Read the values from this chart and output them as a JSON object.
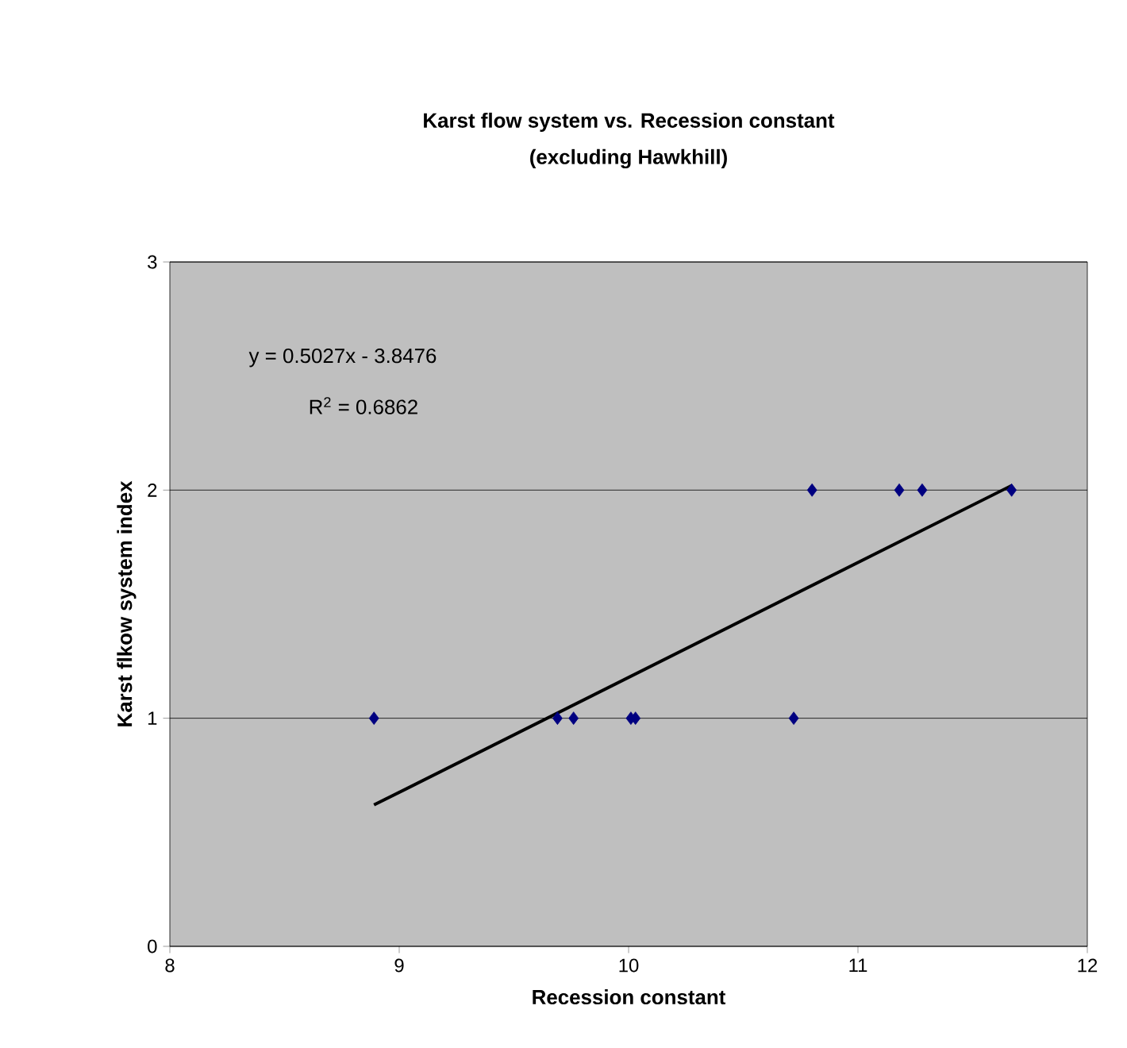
{
  "chart_data": {
    "type": "scatter",
    "title": "Karst flow system vs. Recession constant",
    "subtitle": "(excluding Hawkhill)",
    "xlabel": "Recession constant",
    "ylabel": "Karst flkow system index",
    "xlim": [
      8,
      12
    ],
    "ylim": [
      0,
      3
    ],
    "xticks": [
      8,
      9,
      10,
      11,
      12
    ],
    "yticks": [
      0,
      1,
      2,
      3
    ],
    "grid": "y",
    "annotations": [
      "y = 0.5027x - 3.8476",
      "R$^{2}$ = 0.6862"
    ],
    "series": [
      {
        "marker": "diamond",
        "color": "#000080",
        "x": [
          8.89,
          9.69,
          9.76,
          10.01,
          10.03,
          10.72,
          10.8,
          11.18,
          11.28,
          11.67
        ],
        "values": [
          1,
          1,
          1,
          1,
          1,
          1,
          2,
          2,
          2,
          2
        ]
      },
      {
        "type": "line",
        "marker": "none",
        "color": "#000000",
        "x": [
          8.89,
          11.67
        ],
        "values": [
          0.62,
          2.02
        ]
      }
    ]
  }
}
